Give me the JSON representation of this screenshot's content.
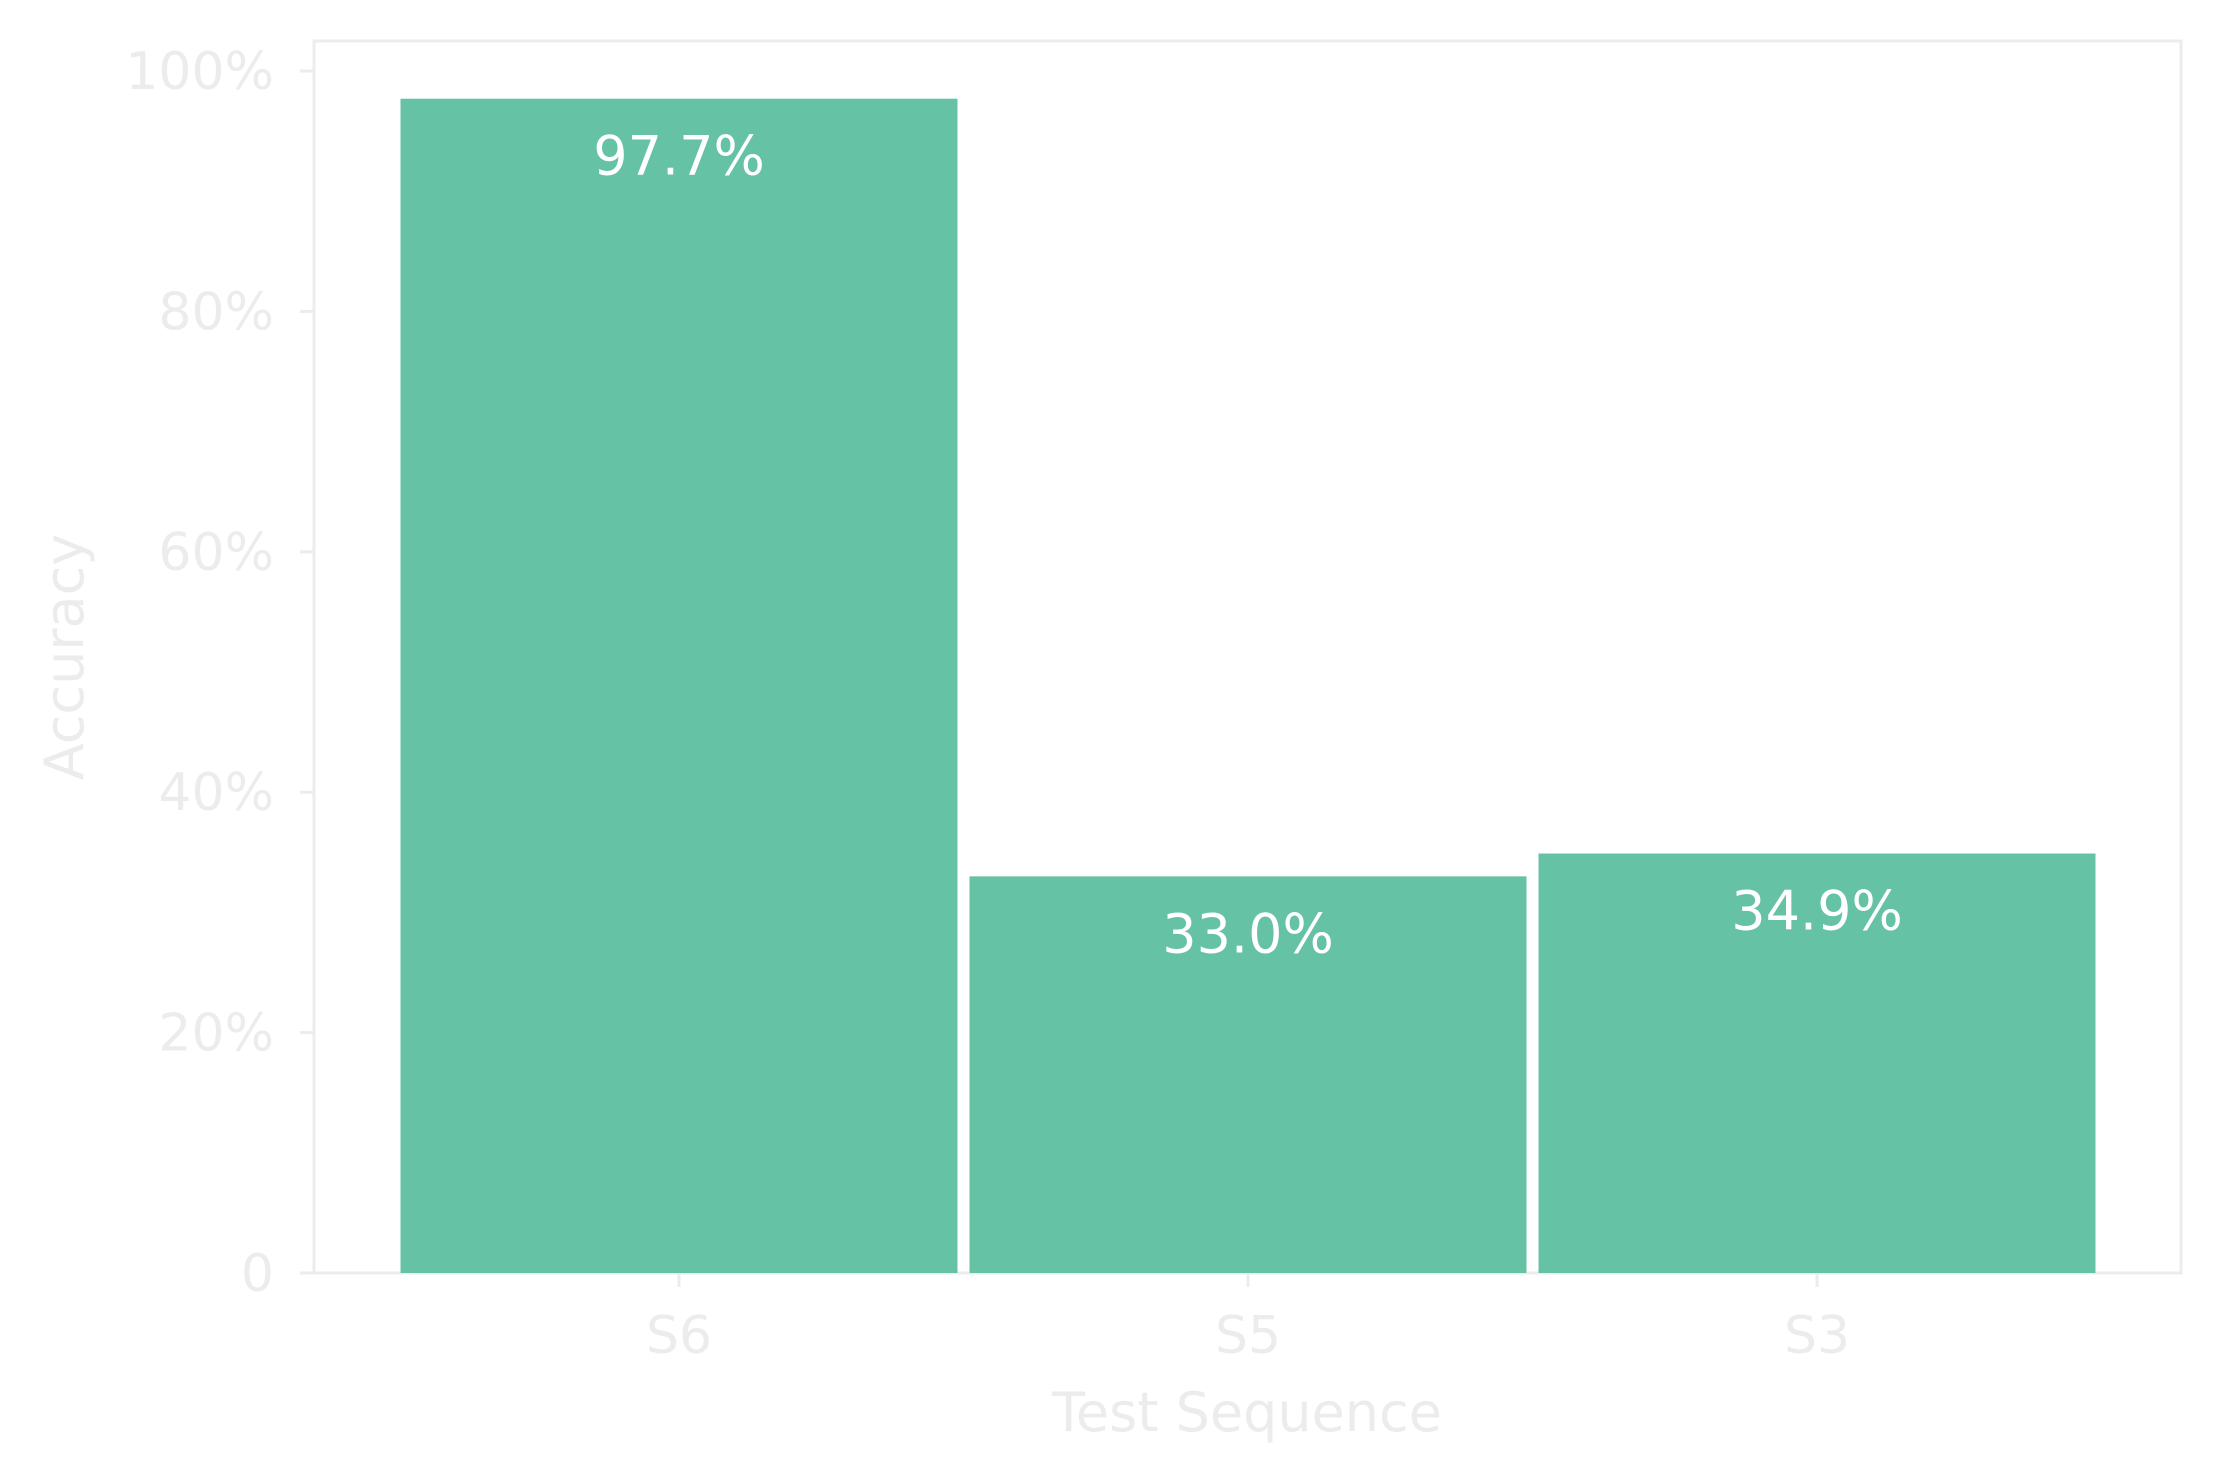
{
  "colors": {
    "bar": "#66c2a5",
    "axis": "#ececec",
    "background": "#ffffff",
    "bar_label": "#ffffff"
  },
  "chart_data": {
    "type": "bar",
    "title": "",
    "xlabel": "Test Sequence",
    "ylabel": "Accuracy",
    "categories": [
      "S6",
      "S5",
      "S3"
    ],
    "values": [
      97.7,
      33.0,
      34.9
    ],
    "value_labels": [
      "97.7%",
      "33.0%",
      "34.9%"
    ],
    "ylim": [
      0,
      102.5
    ],
    "yticks": [
      0,
      20,
      40,
      60,
      80,
      100
    ],
    "ytick_labels": [
      "0",
      "20%",
      "40%",
      "60%",
      "80%",
      "100%"
    ],
    "grid": false,
    "legend": "none"
  }
}
